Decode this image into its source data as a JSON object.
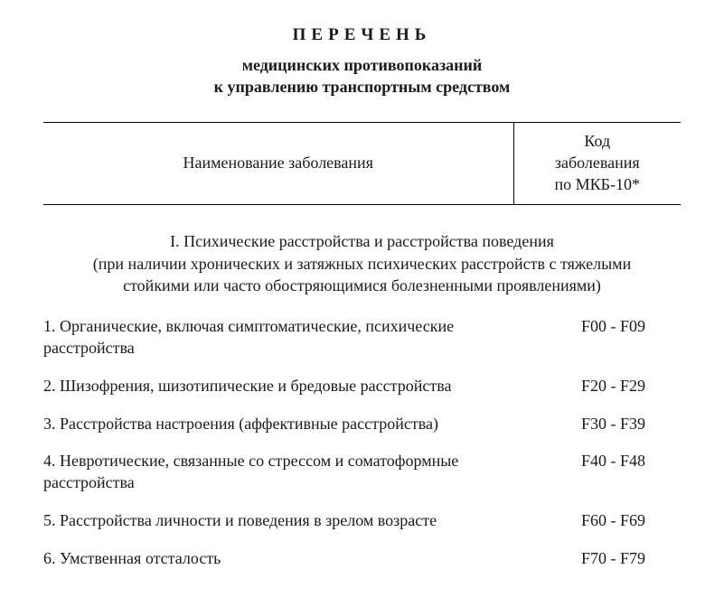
{
  "title": {
    "main": "ПЕРЕЧЕНЬ",
    "sub_line1": "медицинских противопоказаний",
    "sub_line2": "к управлению транспортным средством"
  },
  "header": {
    "name_col": "Наименование заболевания",
    "code_col_l1": "Код",
    "code_col_l2": "заболевания",
    "code_col_l3": "по МКБ-10*"
  },
  "section": {
    "heading_l1": "I. Психические расстройства и расстройства поведения",
    "heading_l2": "(при наличии хронических и затяжных психических расстройств с тяжелыми",
    "heading_l3": "стойкими или часто обостряющимися болезненными проявлениями)"
  },
  "entries": [
    {
      "name": "1. Органические, включая симптоматические, психические расстройства",
      "code": "F00 - F09"
    },
    {
      "name": "2. Шизофрения, шизотипические и бредовые расстройства",
      "code": "F20 - F29"
    },
    {
      "name": "3. Расстройства настроения (аффективные расстройства)",
      "code": "F30 - F39"
    },
    {
      "name": "4. Невротические, связанные со стрессом и соматоформные расстройства",
      "code": "F40 - F48"
    },
    {
      "name": "5. Расстройства личности и поведения в зрелом возрасте",
      "code": "F60 - F69"
    },
    {
      "name": "6. Умственная отсталость",
      "code": "F70 - F79"
    }
  ],
  "style": {
    "background_color": "#ffffff",
    "text_color": "#1a1a1a",
    "border_color": "#000000",
    "title_fontsize": 19,
    "body_fontsize": 18,
    "letter_spacing_title": 6
  }
}
